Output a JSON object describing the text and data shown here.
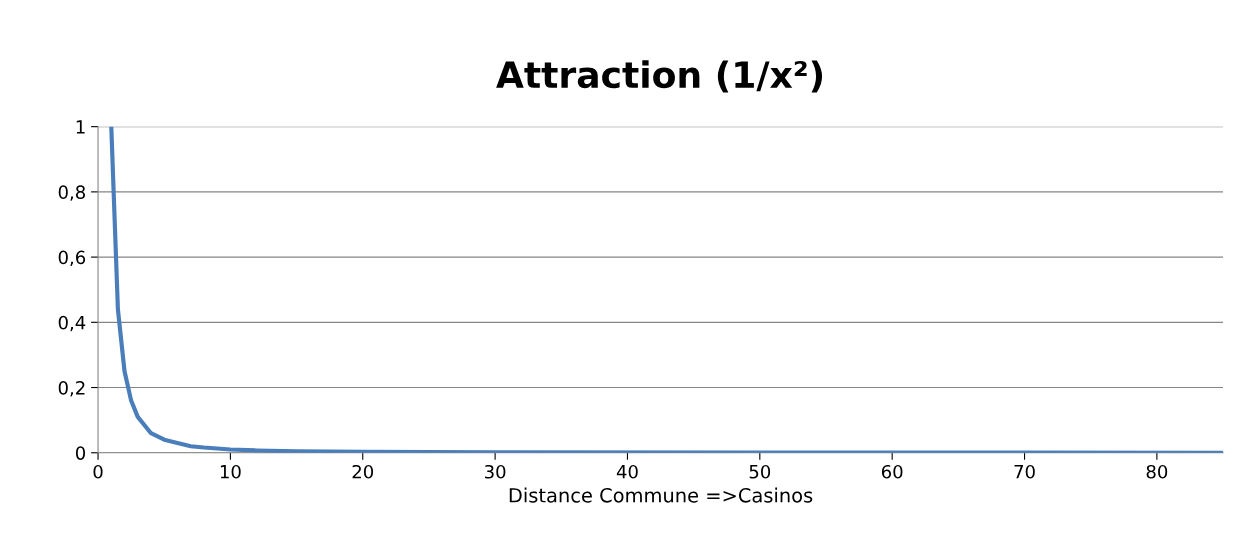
{
  "chart_data": {
    "type": "line",
    "title": "Attraction (1/x²)",
    "xlabel": "Distance Commune =>Casinos",
    "series": [
      {
        "color": "#4a7ebb",
        "x": [
          1,
          1.5,
          2,
          2.5,
          3,
          4,
          5,
          6,
          7,
          8,
          10,
          12,
          15,
          20,
          30,
          50,
          85
        ],
        "values": [
          1,
          0.44,
          0.25,
          0.16,
          0.11,
          0.06,
          0.04,
          0.03,
          0.02,
          0.016,
          0.01,
          0.007,
          0.004,
          0.0025,
          0.001,
          0.0004,
          0.0001
        ]
      }
    ],
    "xlim": [
      0,
      85
    ],
    "xticks": [
      0,
      10,
      20,
      30,
      40,
      50,
      60,
      70,
      80
    ],
    "ylim": [
      0,
      1
    ],
    "yticks": [
      0,
      {
        "value": 0.2,
        "label": "0,2"
      },
      {
        "value": 0.4,
        "label": "0,4"
      },
      {
        "value": 0.6,
        "label": "0,6"
      },
      {
        "value": 0.8,
        "label": "0,8"
      },
      1
    ],
    "grid": "y",
    "legend": false,
    "marker": "none",
    "line_style": "solid"
  }
}
